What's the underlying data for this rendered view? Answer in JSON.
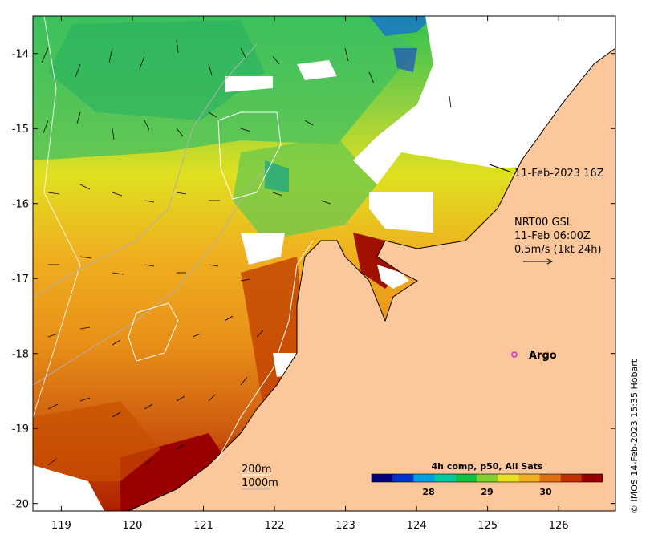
{
  "map": {
    "region": "North-west Australian shelf, Kimberley coast",
    "lon_ticks": [
      "119",
      "120",
      "121",
      "122",
      "123",
      "124",
      "125",
      "126"
    ],
    "lat_ticks": [
      "-14",
      "-15",
      "-16",
      "-17",
      "-18",
      "-19",
      "-20"
    ],
    "lon_range": [
      118.6,
      126.8
    ],
    "lat_range": [
      -20.1,
      -13.5
    ]
  },
  "annotations": {
    "image_time": "11-Feb-2023 16Z",
    "current_source": "NRT00 GSL",
    "current_time": "11-Feb 06:00Z",
    "current_scale": "0.5m/s (1kt 24h)",
    "argo_label": "Argo",
    "contour_200": "200m",
    "contour_1000": "1000m"
  },
  "colorbar": {
    "title": "4h comp, p50, All Sats",
    "ticks": [
      "28",
      "29",
      "30"
    ],
    "colors": [
      "#00007f",
      "#0033cc",
      "#00a0e0",
      "#00c8a0",
      "#10c040",
      "#80d030",
      "#e8e020",
      "#f0b020",
      "#e07010",
      "#c03000",
      "#9a0000"
    ]
  },
  "credit": "© IMOS 14-Feb-2023 15:35 Hobart",
  "colors": {
    "land": "#fcc89b",
    "cloud": "#ffffff",
    "warm": "#9a0000",
    "argo": "#e020e0"
  }
}
